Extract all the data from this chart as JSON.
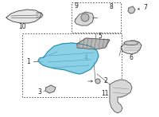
{
  "background_color": "#ffffff",
  "fig_width": 2.0,
  "fig_height": 1.47,
  "dpi": 100,
  "highlight_color": "#6ec6e0",
  "line_color": "#444444",
  "text_color": "#222222",
  "font_size": 5.5
}
